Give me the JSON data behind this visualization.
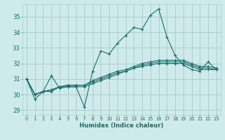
{
  "xlabel": "Humidex (Indice chaleur)",
  "ylabel": "",
  "background_color": "#ceeaea",
  "grid_color": "#aacfcf",
  "line_color": "#1a6e6a",
  "xlim": [
    -0.5,
    23.5
  ],
  "ylim": [
    28.7,
    35.8
  ],
  "yticks": [
    29,
    30,
    31,
    32,
    33,
    34,
    35
  ],
  "xticks": [
    0,
    1,
    2,
    3,
    4,
    5,
    6,
    7,
    8,
    9,
    10,
    11,
    12,
    13,
    14,
    15,
    16,
    17,
    18,
    19,
    20,
    21,
    22,
    23
  ],
  "series": [
    [
      31.0,
      29.7,
      30.2,
      31.2,
      30.4,
      30.5,
      30.5,
      29.2,
      31.5,
      32.8,
      32.6,
      33.3,
      33.8,
      34.3,
      34.2,
      35.1,
      35.5,
      33.7,
      32.5,
      31.9,
      31.6,
      31.5,
      32.1,
      31.6
    ],
    [
      31.0,
      30.0,
      30.2,
      30.2,
      30.5,
      30.5,
      30.5,
      30.5,
      30.7,
      30.9,
      31.1,
      31.3,
      31.5,
      31.7,
      31.8,
      31.9,
      32.0,
      32.0,
      32.0,
      32.0,
      31.8,
      31.6,
      31.6,
      31.6
    ],
    [
      31.0,
      30.0,
      30.2,
      30.3,
      30.5,
      30.6,
      30.6,
      30.6,
      30.8,
      31.0,
      31.2,
      31.4,
      31.5,
      31.7,
      31.9,
      32.0,
      32.1,
      32.1,
      32.1,
      32.1,
      31.9,
      31.7,
      31.7,
      31.6
    ],
    [
      31.0,
      30.0,
      30.2,
      30.3,
      30.5,
      30.6,
      30.6,
      30.6,
      30.9,
      31.1,
      31.3,
      31.5,
      31.6,
      31.8,
      32.0,
      32.1,
      32.2,
      32.2,
      32.2,
      32.2,
      32.0,
      31.8,
      31.8,
      31.7
    ]
  ],
  "xlabel_fontsize": 6.0,
  "ytick_fontsize": 6.0,
  "xtick_fontsize": 4.8
}
